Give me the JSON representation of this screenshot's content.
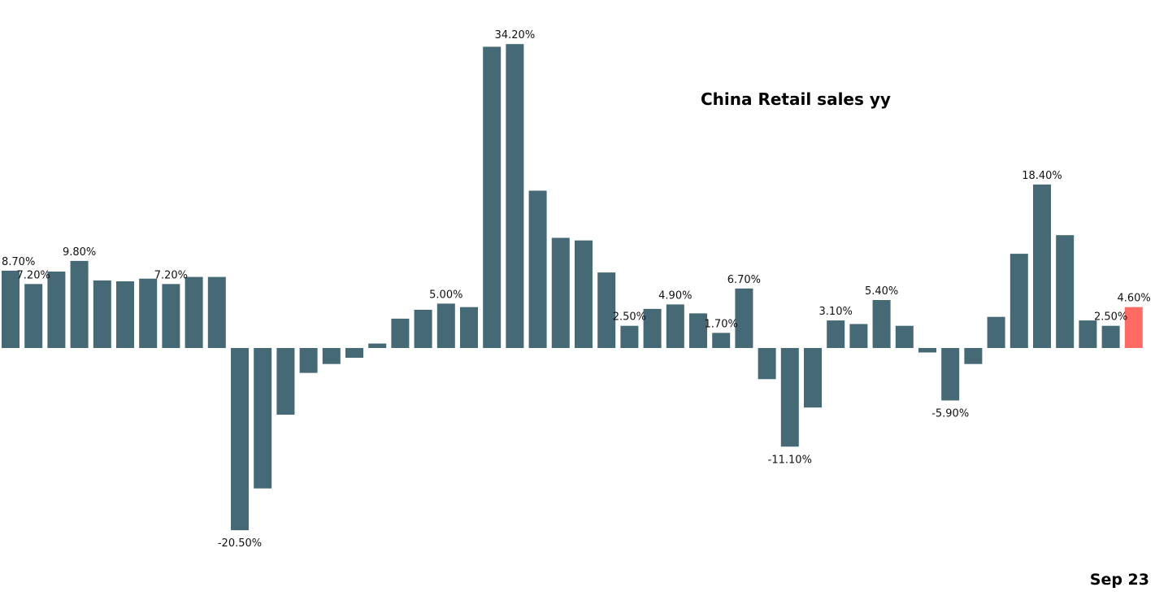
{
  "chart_data": {
    "type": "bar",
    "title": "China Retail sales yy",
    "corner_label": "Sep 23",
    "xlabel": "",
    "ylabel": "",
    "ylim": [
      -22,
      36
    ],
    "grid": false,
    "legend": "none",
    "colors": {
      "bar": "#466a75",
      "highlight": "#ff6b63"
    },
    "values": [
      8.7,
      7.2,
      8.6,
      9.8,
      7.6,
      7.5,
      7.8,
      7.2,
      8.0,
      8.0,
      -20.5,
      -15.8,
      -7.5,
      -2.8,
      -1.8,
      -1.1,
      0.5,
      3.3,
      4.3,
      5.0,
      4.6,
      33.9,
      34.2,
      17.7,
      12.4,
      12.1,
      8.5,
      2.5,
      4.4,
      4.9,
      3.9,
      1.7,
      6.7,
      -3.5,
      -11.1,
      -6.7,
      3.1,
      2.7,
      5.4,
      2.5,
      -0.5,
      -5.9,
      -1.8,
      3.5,
      10.6,
      18.4,
      12.7,
      3.1,
      2.5,
      4.6
    ],
    "labels": [
      "8.70%",
      "7.20%",
      "",
      "9.80%",
      "",
      "",
      "",
      "7.20%",
      "",
      "",
      "-20.50%",
      "",
      "",
      "",
      "",
      "",
      "",
      "",
      "",
      "5.00%",
      "",
      "",
      "34.20%",
      "",
      "",
      "",
      "",
      "2.50%",
      "",
      "4.90%",
      "",
      "1.70%",
      "6.70%",
      "",
      "-11.10%",
      "",
      "3.10%",
      "",
      "5.40%",
      "",
      "",
      "-5.90%",
      "",
      "",
      "",
      "18.40%",
      "",
      "",
      "2.50%",
      "4.60%"
    ],
    "highlight_index": 49
  }
}
